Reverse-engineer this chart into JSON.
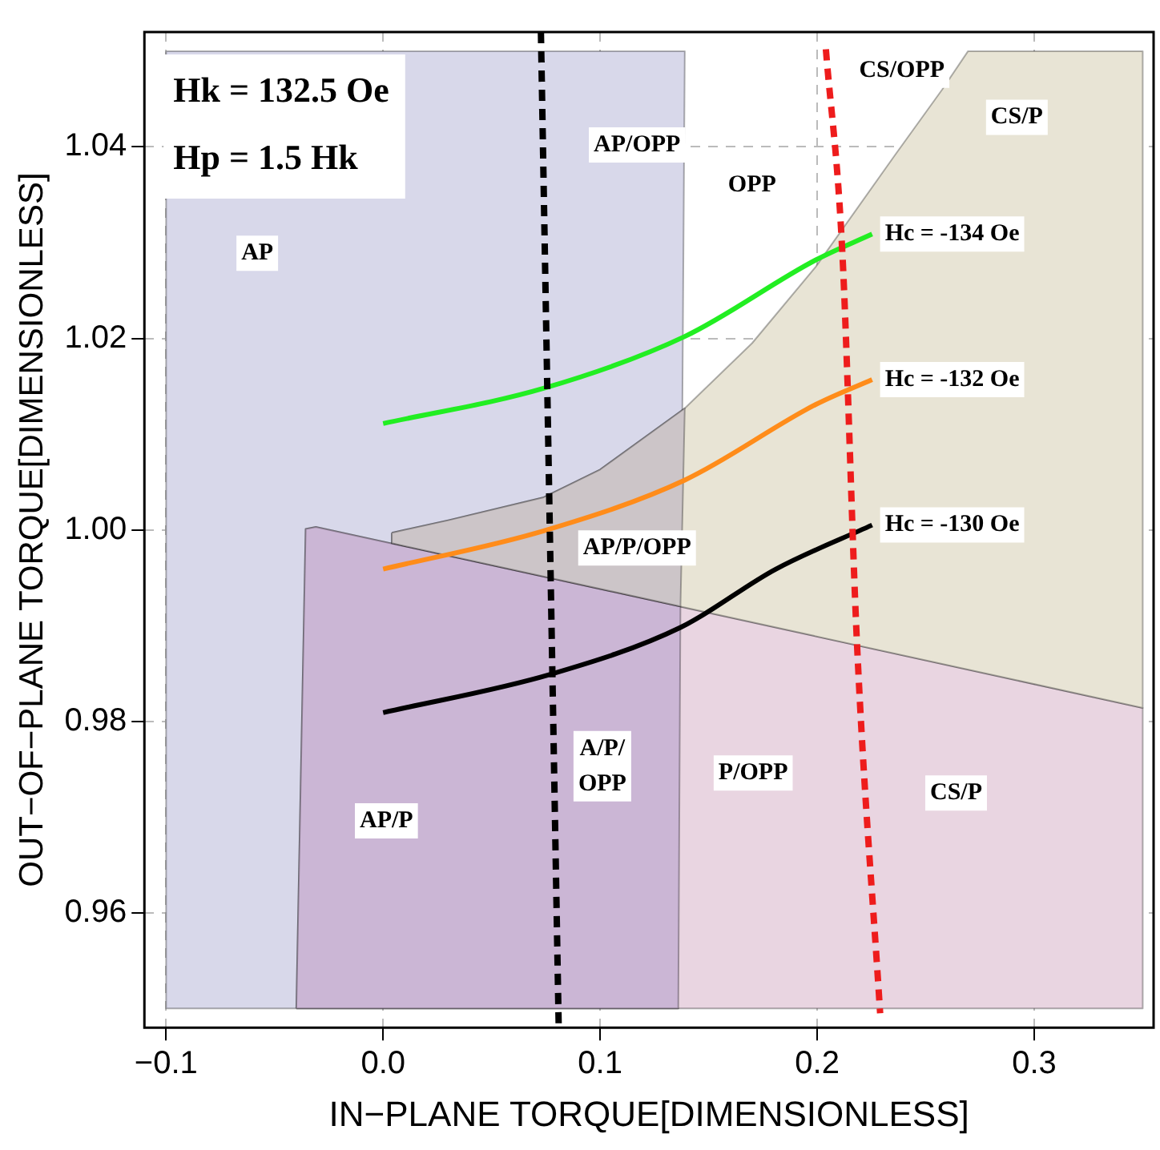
{
  "chart_data": {
    "type": "area",
    "xlabel": "IN−PLANE TORQUE[DIMENSIONLESS]",
    "ylabel": "OUT−OF−PLANE TORQUE[DIMENSIONLESS]",
    "xlim": [
      -0.11,
      0.355
    ],
    "ylim": [
      0.948,
      1.052
    ],
    "xticks": [
      {
        "value": -0.1,
        "label": "−0.1"
      },
      {
        "value": 0,
        "label": "0.0"
      },
      0.1,
      0.2,
      0.3
    ],
    "yticks": [
      0.96,
      0.98,
      {
        "value": 1,
        "label": "1.00"
      },
      1.02,
      1.04
    ],
    "grid": true,
    "legend": false,
    "series": [
      {
        "color": "#d8d8ea",
        "x": [
          -0.1,
          0.139,
          0.136,
          -0.1
        ],
        "values": [
          1.05,
          1.05,
          0.95,
          0.95
        ]
      },
      {
        "color": "#e9d5e1",
        "x": [
          -0.04,
          -0.0357,
          -0.031,
          0.35,
          0.35
        ],
        "values": [
          0.95,
          1.0001,
          1.0003,
          0.9814,
          0.95
        ]
      },
      {
        "color": "#cbb6d5",
        "x": [
          -0.04,
          -0.0357,
          -0.031,
          0.137,
          0.136
        ],
        "values": [
          0.95,
          1.0001,
          1.0003,
          0.992,
          0.95
        ]
      },
      {
        "color": "#e8e4d5",
        "x": [
          0.004,
          0.03,
          0.074,
          0.1,
          0.139,
          0.17,
          0.1994,
          0.236,
          0.2576,
          0.2695,
          0.35,
          0.35,
          0.004
        ],
        "values": [
          0.9997,
          1.001,
          1.0034,
          1.0063,
          1.0127,
          1.0195,
          1.0275,
          1.0392,
          1.046,
          1.05,
          1.05,
          0.9814,
          0.9986
        ]
      },
      {
        "color": "#ccc5c8",
        "x": [
          0.004,
          0.03,
          0.074,
          0.1,
          0.139,
          0.137,
          0.004
        ],
        "values": [
          0.9997,
          1.001,
          1.0034,
          1.0063,
          1.0127,
          0.992,
          0.9986
        ]
      },
      {
        "type": "line",
        "name": "Hc = -134 Oe",
        "color": "#22ee22",
        "x": [
          0,
          0.0742,
          0.139,
          0.1994,
          0.2253
        ],
        "values": [
          1.0111,
          1.0148,
          1.0202,
          1.0282,
          1.0309
        ]
      },
      {
        "type": "line",
        "name": "Hc = -132 Oe",
        "color": "#ff8c1a",
        "x": [
          0,
          0.074,
          0.139,
          0.1994,
          0.2253
        ],
        "values": [
          0.9959,
          0.9999,
          1.0052,
          1.0131,
          1.0157
        ]
      },
      {
        "type": "line",
        "name": "Hc = -130 Oe",
        "color": "#000000",
        "x": [
          0,
          0.077,
          0.137,
          0.181,
          0.2253
        ],
        "values": [
          0.9809,
          0.9849,
          0.9898,
          0.9959,
          1.0005
        ]
      },
      {
        "type": "line",
        "line_style": "dashed",
        "color": "#000000",
        "x": [
          0.0727,
          0.0809
        ],
        "values": [
          1.052,
          0.948
        ]
      },
      {
        "type": "line",
        "line_style": "dashed",
        "color": "#ee1c1c",
        "x": [
          0.204,
          0.2116,
          0.2183,
          0.229
        ],
        "values": [
          1.0502,
          1.0289,
          0.9883,
          0.9495
        ]
      }
    ],
    "annotations": [
      "Hk = 132.5 Oe",
      "Hp = 1.5 Hk",
      "AP",
      "AP/OPP",
      "OPP",
      "CS/OPP",
      "CS/P",
      "AP/P/OPP",
      "A/P/\nOPP",
      "P/OPP",
      "CS/P",
      "AP/P"
    ]
  }
}
